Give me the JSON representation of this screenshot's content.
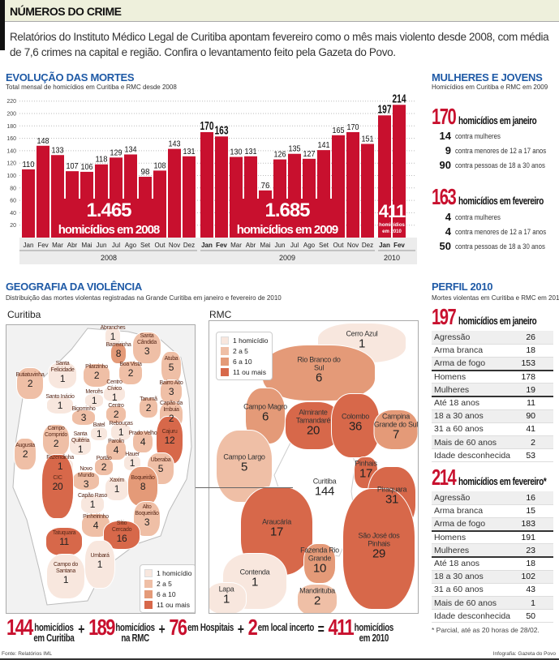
{
  "header": {
    "title": "NÚMEROS DO CRIME",
    "intro": "Relatórios do Instituto Médico Legal de Curitiba apontam fevereiro como o mês mais violento desde 2008, com média de 7,6 crimes na capital e região. Confira o levantamento feito pela Gazeta do Povo."
  },
  "colors": {
    "bar": "#c8102e",
    "title": "#1f5aa6",
    "level1": "#f8e7de",
    "level2": "#efbfa6",
    "level3": "#e49a78",
    "level4": "#d7684a"
  },
  "chart_data": {
    "type": "bar",
    "title": "EVOLUÇÃO DAS MORTES",
    "subtitle": "Total mensal de homicídios em Curitiba e RMC desde 2008",
    "yticks": [
      20,
      40,
      60,
      80,
      100,
      120,
      140,
      160,
      180,
      200,
      220
    ],
    "ylim": [
      0,
      220
    ],
    "years": [
      {
        "year": "2008",
        "months": [
          "Jan",
          "Fev",
          "Mar",
          "Abr",
          "Mai",
          "Jun",
          "Jul",
          "Ago",
          "Set",
          "Out",
          "Nov",
          "Dez"
        ],
        "values": [
          110,
          148,
          133,
          107,
          106,
          118,
          129,
          134,
          98,
          108,
          143,
          131
        ],
        "total": "1.465",
        "total_label": "homicídios em 2008"
      },
      {
        "year": "2009",
        "months": [
          "Jan",
          "Fev",
          "Mar",
          "Abr",
          "Mai",
          "Jun",
          "Jul",
          "Ago",
          "Set",
          "Out",
          "Nov",
          "Dez"
        ],
        "values": [
          170,
          163,
          130,
          131,
          76,
          126,
          135,
          127,
          141,
          165,
          170,
          151
        ],
        "total": "1.685",
        "total_label": "homicídios em 2009"
      },
      {
        "year": "2010",
        "months": [
          "Jan",
          "Fev"
        ],
        "values": [
          197,
          214
        ],
        "total": "411",
        "total_label": "homicídios em 2010"
      }
    ]
  },
  "mulheres": {
    "title": "MULHERES E JOVENS",
    "subtitle": "Homicídios em Curitiba e RMC em 2009",
    "jan": {
      "n": "170",
      "label": "homicídios em janeiro",
      "rows": [
        {
          "n": "14",
          "t": "contra mulheres"
        },
        {
          "n": "9",
          "t": "contra menores de 12 a 17 anos"
        },
        {
          "n": "90",
          "t": "contra pessoas de 18 a 30 anos"
        }
      ]
    },
    "fev": {
      "n": "163",
      "label": "homicídios em fevereiro",
      "rows": [
        {
          "n": "4",
          "t": "contra mulheres"
        },
        {
          "n": "4",
          "t": "contra menores de 12 a 17 anos"
        },
        {
          "n": "50",
          "t": "contra pessoas de 18 a 30 anos"
        }
      ]
    }
  },
  "perfil": {
    "title": "PERFIL 2010",
    "subtitle": "Mortes violentas em Curitiba e RMC em 2010",
    "jan": {
      "n": "197",
      "label": "homicídios em janeiro",
      "rows": [
        [
          "Agressão",
          "26"
        ],
        [
          "Arma branca",
          "18"
        ],
        [
          "Arma de fogo",
          "153"
        ],
        [
          "Homens",
          "178"
        ],
        [
          "Mulheres",
          "19"
        ],
        [
          "Até 18 anos",
          "11"
        ],
        [
          "18 a 30 anos",
          "90"
        ],
        [
          "31 a 60 anos",
          "41"
        ],
        [
          "Mais de 60 anos",
          "2"
        ],
        [
          "Idade desconhecida",
          "53"
        ]
      ]
    },
    "fev": {
      "n": "214",
      "label": "homicídios em fevereiro*",
      "rows": [
        [
          "Agressão",
          "16"
        ],
        [
          "Arma branca",
          "15"
        ],
        [
          "Arma de fogo",
          "183"
        ],
        [
          "Homens",
          "191"
        ],
        [
          "Mulheres",
          "23"
        ],
        [
          "Até 18 anos",
          "18"
        ],
        [
          "18 a 30 anos",
          "102"
        ],
        [
          "31 a 60 anos",
          "43"
        ],
        [
          "Mais de 60 anos",
          "1"
        ],
        [
          "Idade desconhecida",
          "50"
        ]
      ]
    },
    "note": "* Parcial, até as 20 horas de 28/02."
  },
  "geo": {
    "title": "GEOGRAFIA DA VIOLÊNCIA",
    "subtitle": "Distribuição das mortes violentas registradas na Grande Curitiba em janeiro e fevereiro de 2010",
    "legend": [
      "1 homicídio",
      "2 a 5",
      "6 a 10",
      "11 ou mais"
    ],
    "curitiba": {
      "title": "Curitiba",
      "districts": [
        [
          "Abranches",
          "1"
        ],
        [
          "Barreirinha",
          "8"
        ],
        [
          "Santa Cândida",
          "3"
        ],
        [
          "Atuba",
          "5"
        ],
        [
          "Pilarzinho",
          "2"
        ],
        [
          "Boa Vista",
          "2"
        ],
        [
          "Santa Felicidade",
          "1"
        ],
        [
          "Butiatuvinha",
          "2"
        ],
        [
          "Bairro Alto",
          "3"
        ],
        [
          "Centro Cívico",
          "1"
        ],
        [
          "Mercês",
          "1"
        ],
        [
          "Centro",
          "2"
        ],
        [
          "Tarumã",
          "2"
        ],
        [
          "Capão da Imbuia",
          "2"
        ],
        [
          "Santo Inácio",
          "1"
        ],
        [
          "Bigorrinho",
          "3"
        ],
        [
          "Batel",
          "1"
        ],
        [
          "Rebouças",
          "1"
        ],
        [
          "Prado Velho",
          "4"
        ],
        [
          "Cajuru",
          "12"
        ],
        [
          "Campo Comprido",
          "2"
        ],
        [
          "Santa Quitéria",
          "1"
        ],
        [
          "Portão",
          "2"
        ],
        [
          "Parolin",
          "4"
        ],
        [
          "Augusta",
          "2"
        ],
        [
          "Fazendinha",
          "1"
        ],
        [
          "Novo Mundo",
          "3"
        ],
        [
          "Hauer",
          "1"
        ],
        [
          "Uberaba",
          "5"
        ],
        [
          "CIC",
          "20"
        ],
        [
          "Capão Raso",
          "1"
        ],
        [
          "Xaxim",
          "1"
        ],
        [
          "Boqueirão",
          "8"
        ],
        [
          "Pinheirinho",
          "4"
        ],
        [
          "Alto Boqueirão",
          "3"
        ],
        [
          "Sítio Cercado",
          "16"
        ],
        [
          "Tatuquara",
          "11"
        ],
        [
          "Umbará",
          "1"
        ],
        [
          "Campo do Santana",
          "1"
        ]
      ]
    },
    "rmc": {
      "title": "RMC",
      "cities": [
        [
          "Cerro Azul",
          "1"
        ],
        [
          "Rio Branco do Sul",
          "6"
        ],
        [
          "Campo Magro",
          "6"
        ],
        [
          "Almirante Tamandaré",
          "20"
        ],
        [
          "Colombo",
          "36"
        ],
        [
          "Campina Grande do Sul",
          "7"
        ],
        [
          "Campo Largo",
          "5"
        ],
        [
          "Pinhais",
          "17"
        ],
        [
          "Curitiba",
          "144"
        ],
        [
          "Piraquara",
          "31"
        ],
        [
          "Araucária",
          "17"
        ],
        [
          "São José dos Pinhais",
          "29"
        ],
        [
          "Fazenda Rio Grande",
          "10"
        ],
        [
          "Contenda",
          "1"
        ],
        [
          "Lapa",
          "1"
        ],
        [
          "Mandirituba",
          "2"
        ]
      ]
    }
  },
  "formula": {
    "items": [
      {
        "n": "144",
        "t1": "homicídios",
        "t2": "em Curitiba"
      },
      {
        "op": "+"
      },
      {
        "n": "189",
        "t1": "homicídios",
        "t2": "na RMC"
      },
      {
        "op": "+"
      },
      {
        "n": "76",
        "t1": "em Hospitais",
        "t2": ""
      },
      {
        "op": "+"
      },
      {
        "n": "2",
        "t1": "em local incerto",
        "t2": ""
      },
      {
        "op": "="
      },
      {
        "n": "411",
        "t1": "homicídios",
        "t2": "em 2010"
      }
    ]
  },
  "footer": {
    "source": "Fonte: Relatórios IML",
    "credit": "Infografia: Gazeta do Povo"
  }
}
